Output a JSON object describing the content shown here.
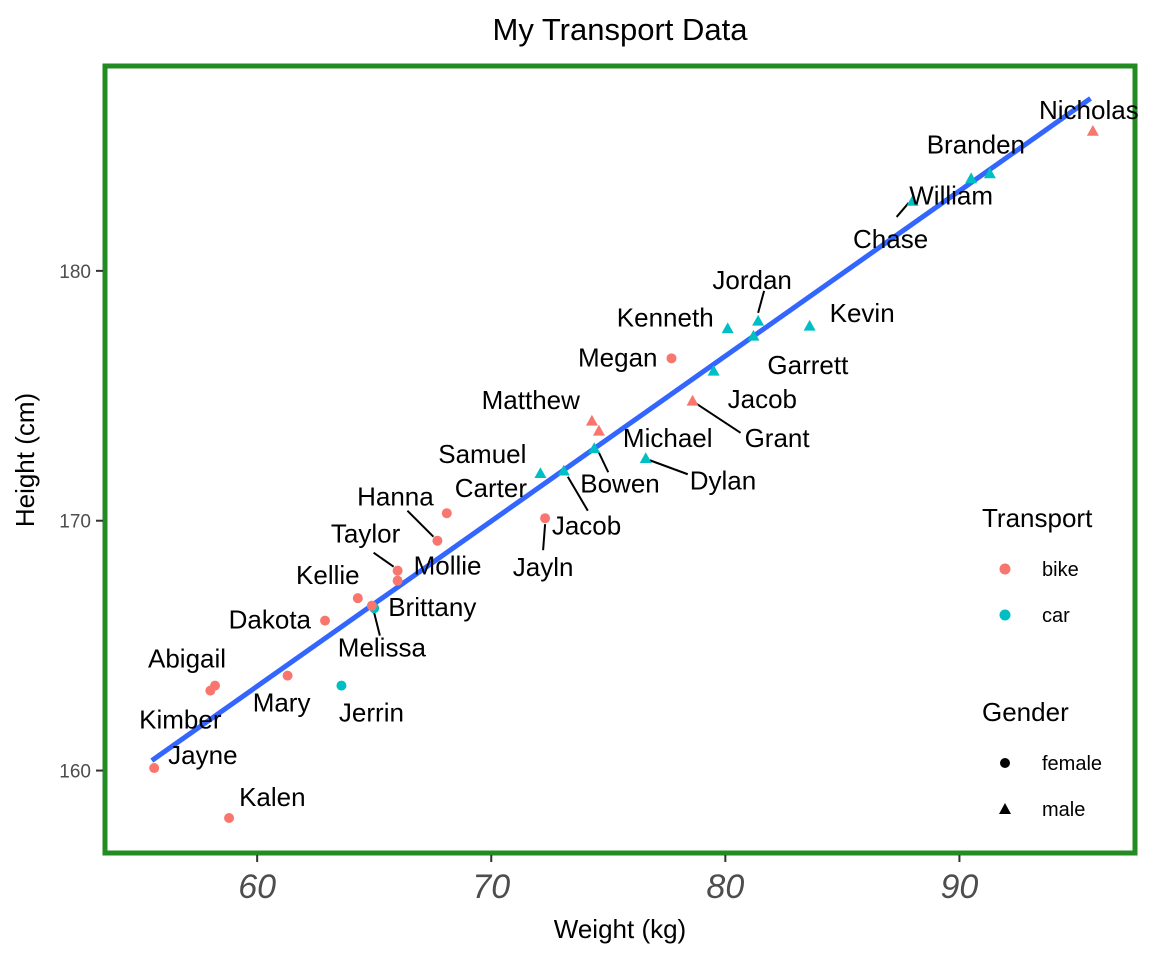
{
  "chart_data": {
    "type": "scatter",
    "title": "My Transport Data",
    "xlabel": "Weight (kg)",
    "ylabel": "Height (cm)",
    "xlim": [
      53.5,
      97.5
    ],
    "ylim": [
      156.7,
      188.2
    ],
    "xticks": [
      60,
      70,
      80,
      90
    ],
    "yticks": [
      160,
      170,
      180
    ],
    "grid": false,
    "colors": {
      "bike": "#F8766D",
      "car": "#00BFC4",
      "fit_line": "#3366FF",
      "panel_border": "#228B22"
    },
    "trend_line": {
      "x": [
        55.5,
        95.6
      ],
      "y": [
        160.4,
        186.9
      ]
    },
    "legends": [
      {
        "title": "Transport",
        "entries": [
          {
            "label": "bike"
          },
          {
            "label": "car"
          }
        ]
      },
      {
        "title": "Gender",
        "entries": [
          {
            "label": "female"
          },
          {
            "label": "male"
          }
        ]
      }
    ],
    "points": [
      {
        "name": "Nicholas",
        "weight": 95.7,
        "height": 185.6,
        "transport": "bike",
        "gender": "male"
      },
      {
        "name": "Branden",
        "weight": 91.3,
        "height": 183.9,
        "transport": "car",
        "gender": "male"
      },
      {
        "name": "William",
        "weight": 90.5,
        "height": 183.7,
        "transport": "car",
        "gender": "male"
      },
      {
        "name": "Chase",
        "weight": 88.0,
        "height": 182.8,
        "transport": "car",
        "gender": "male"
      },
      {
        "name": "Jordan",
        "weight": 81.4,
        "height": 178.0,
        "transport": "car",
        "gender": "male"
      },
      {
        "name": "Kenneth",
        "weight": 80.1,
        "height": 177.7,
        "transport": "car",
        "gender": "male"
      },
      {
        "name": "Kevin",
        "weight": 83.6,
        "height": 177.8,
        "transport": "car",
        "gender": "male"
      },
      {
        "name": "Garrett",
        "weight": 81.2,
        "height": 177.4,
        "transport": "car",
        "gender": "male"
      },
      {
        "name": "Megan",
        "weight": 77.7,
        "height": 176.5,
        "transport": "bike",
        "gender": "female"
      },
      {
        "name": "Jacob",
        "weight": 79.5,
        "height": 176.0,
        "transport": "car",
        "gender": "male"
      },
      {
        "name": "Grant",
        "weight": 78.6,
        "height": 174.8,
        "transport": "bike",
        "gender": "male"
      },
      {
        "name": "Matthew",
        "weight": 74.3,
        "height": 174.0,
        "transport": "bike",
        "gender": "male"
      },
      {
        "name": "Michael",
        "weight": 74.6,
        "height": 173.6,
        "transport": "bike",
        "gender": "male"
      },
      {
        "name": "Bowen",
        "weight": 74.4,
        "height": 172.9,
        "transport": "car",
        "gender": "male"
      },
      {
        "name": "Dylan",
        "weight": 76.6,
        "height": 172.5,
        "transport": "car",
        "gender": "male"
      },
      {
        "name": "Samuel",
        "weight": 72.1,
        "height": 171.9,
        "transport": "car",
        "gender": "male"
      },
      {
        "name": "Jacob",
        "weight": 73.1,
        "height": 172.0,
        "transport": "car",
        "gender": "male"
      },
      {
        "name": "Jayln",
        "weight": 72.3,
        "height": 170.1,
        "transport": "bike",
        "gender": "female"
      },
      {
        "name": "Carter",
        "weight": 68.1,
        "height": 170.3,
        "transport": "bike",
        "gender": "female"
      },
      {
        "name": "Hanna",
        "weight": 67.7,
        "height": 169.2,
        "transport": "bike",
        "gender": "female"
      },
      {
        "name": "Taylor",
        "weight": 66.0,
        "height": 168.0,
        "transport": "bike",
        "gender": "female"
      },
      {
        "name": "Mollie",
        "weight": 66.0,
        "height": 167.6,
        "transport": "bike",
        "gender": "female"
      },
      {
        "name": "Kellie",
        "weight": 64.3,
        "height": 166.9,
        "transport": "bike",
        "gender": "female"
      },
      {
        "name": "Brittany",
        "weight": 65.0,
        "height": 166.5,
        "transport": "car",
        "gender": "female"
      },
      {
        "name": "Dakota",
        "weight": 62.9,
        "height": 166.0,
        "transport": "bike",
        "gender": "female"
      },
      {
        "name": "Melissa",
        "weight": 64.9,
        "height": 166.6,
        "transport": "bike",
        "gender": "female"
      },
      {
        "name": "Mary",
        "weight": 61.3,
        "height": 163.8,
        "transport": "bike",
        "gender": "female"
      },
      {
        "name": "Abigail",
        "weight": 58.2,
        "height": 163.4,
        "transport": "bike",
        "gender": "female"
      },
      {
        "name": "Kimber",
        "weight": 58.0,
        "height": 163.2,
        "transport": "bike",
        "gender": "female"
      },
      {
        "name": "Jerrin",
        "weight": 63.6,
        "height": 163.4,
        "transport": "car",
        "gender": "female"
      },
      {
        "name": "Jayne",
        "weight": 55.6,
        "height": 160.1,
        "transport": "bike",
        "gender": "female"
      },
      {
        "name": "Kalen",
        "weight": 58.8,
        "height": 158.1,
        "transport": "bike",
        "gender": "female"
      }
    ]
  }
}
